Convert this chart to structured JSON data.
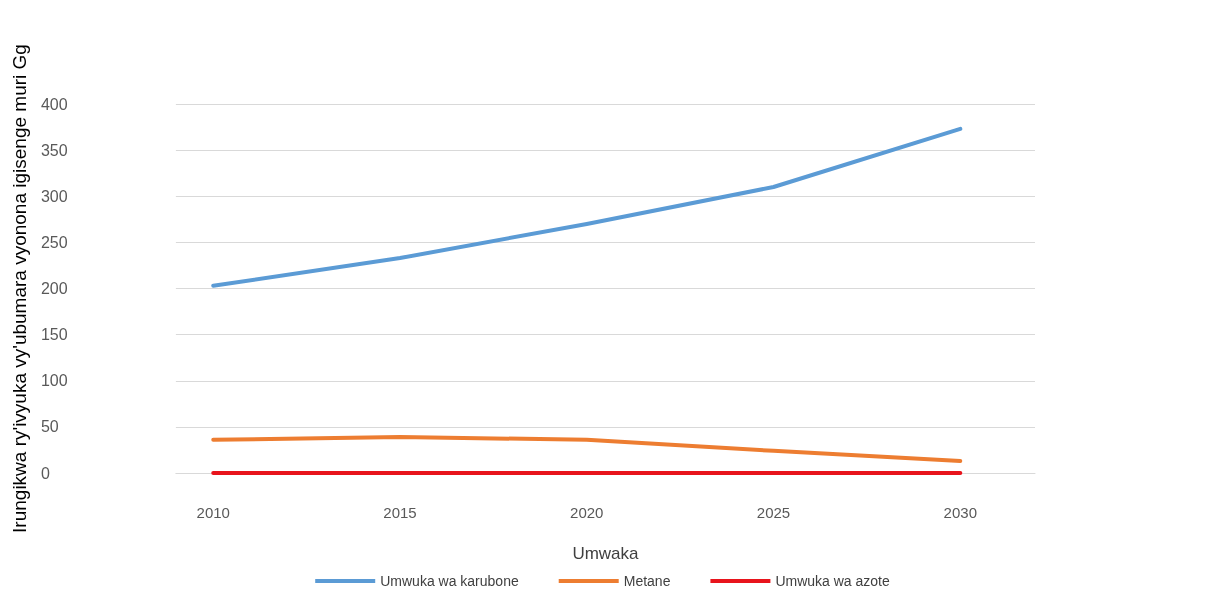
{
  "chart_data": {
    "type": "line",
    "xlabel": "Umwaka",
    "ylabel": "Irungikwa ry'ivyuka vy'ubumara vyonona igisenge muri Gg",
    "x": [
      2010,
      2015,
      2020,
      2025,
      2030
    ],
    "series": [
      {
        "name": "Umwuka wa karubone",
        "color": "#5b9bd5",
        "values": [
          203,
          233,
          270,
          310,
          373
        ]
      },
      {
        "name": "Metane",
        "color": "#ed7d31",
        "values": [
          36,
          39,
          36,
          24,
          13
        ]
      },
      {
        "name": "Umwuka wa azote",
        "color": "#e8141c",
        "values": [
          0,
          0,
          0,
          0,
          0
        ]
      }
    ],
    "xlim": [
      2009,
      2032
    ],
    "xticks": [
      2010,
      2015,
      2020,
      2025,
      2030
    ],
    "ylim": [
      0,
      400
    ],
    "yticks": [
      0,
      50,
      100,
      150,
      200,
      250,
      300,
      350,
      400
    ],
    "grid": "y",
    "legend": "bottom",
    "marker": "none",
    "line_style": "solid"
  }
}
